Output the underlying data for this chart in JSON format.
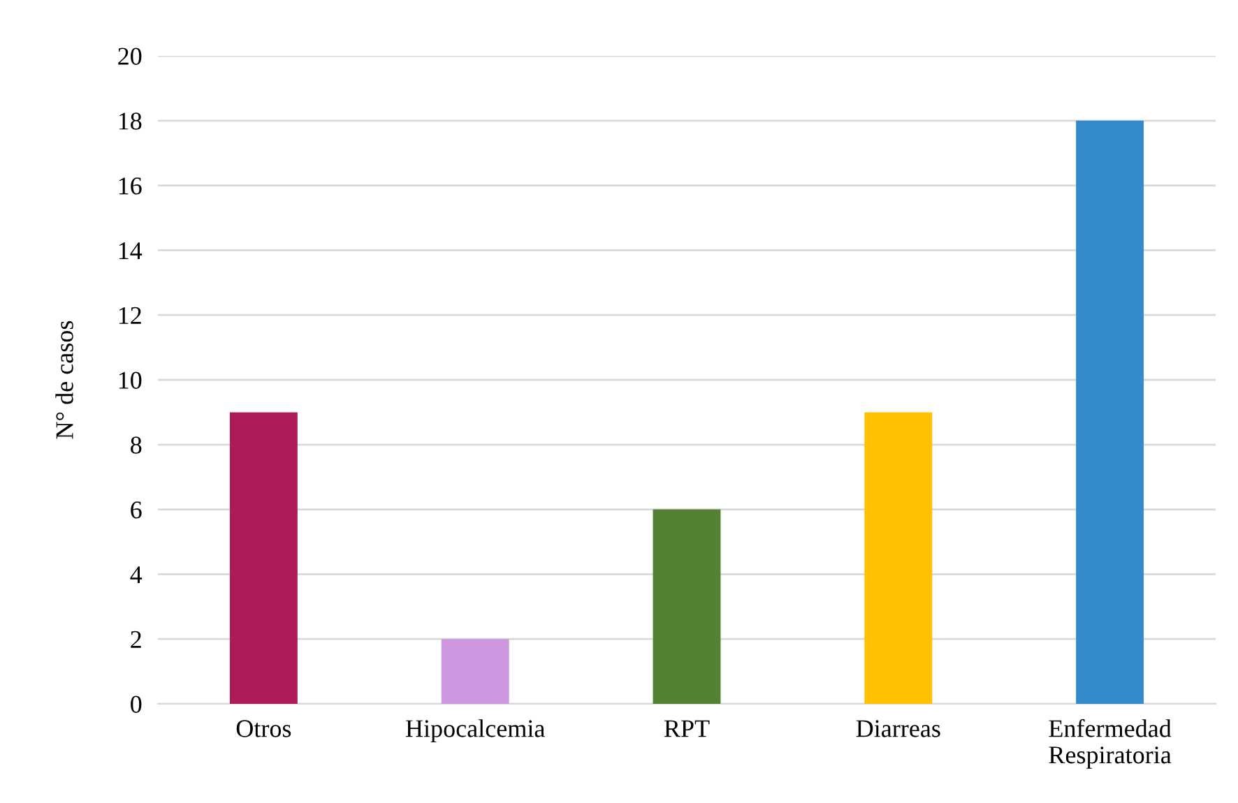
{
  "chart_data": {
    "type": "bar",
    "ylabel": "N° de casos",
    "categories": [
      "Otros",
      "Hipocalcemia",
      "RPT",
      "Diarreas",
      "Enfermedad\nRespiratoria"
    ],
    "values": [
      9,
      2,
      6,
      9,
      18
    ],
    "colors": [
      "#ad1b5a",
      "#cf96e0",
      "#548235",
      "#ffc000",
      "#358acb"
    ],
    "ylim": [
      0,
      20
    ],
    "yticks": [
      0,
      2,
      4,
      6,
      8,
      10,
      12,
      14,
      16,
      18,
      20
    ],
    "grid": "y"
  }
}
